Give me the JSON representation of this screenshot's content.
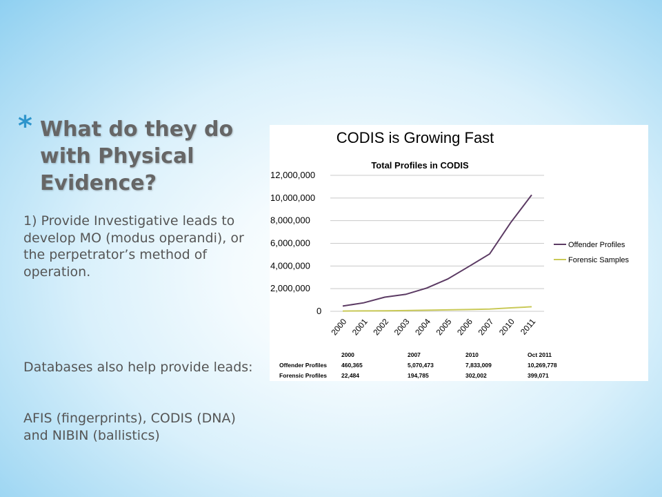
{
  "slide": {
    "bullet": "*",
    "title_lines": [
      "What do they do",
      "with Physical",
      "Evidence?"
    ],
    "paragraph1": "1) Provide Investigative leads to develop MO (modus operandi), or the perpetrator’s method of operation.",
    "paragraph2": "Databases also help provide leads:",
    "paragraph3": "AFIS (fingerprints), CODIS (DNA) and NIBIN (ballistics)"
  },
  "colors": {
    "offender": "#5b3a63",
    "forensic": "#c9c957",
    "grid": "#c8c8c8",
    "bullet": "#2e95cc",
    "title": "#666666"
  },
  "chart_data": {
    "type": "line",
    "heading": "CODIS is Growing Fast",
    "title": "Total Profiles in CODIS",
    "categories": [
      "2000",
      "2001",
      "2002",
      "2003",
      "2004",
      "2005",
      "2006",
      "2007",
      "2010",
      "2011"
    ],
    "series": [
      {
        "name": "Offender Profiles",
        "values": [
          460365,
          750000,
          1250000,
          1500000,
          2050000,
          2850000,
          3950000,
          5070473,
          7833009,
          10269778
        ]
      },
      {
        "name": "Forensic Samples",
        "values": [
          22484,
          35000,
          50000,
          70000,
          95000,
          125000,
          160000,
          194785,
          302002,
          399071
        ]
      }
    ],
    "y_ticks": [
      "0",
      "2,000,000",
      "4,000,000",
      "6,000,000",
      "8,000,000",
      "10,000,000",
      "12,000,000"
    ],
    "ylim": [
      0,
      12000000
    ],
    "legend_position": "right",
    "grid": true,
    "table": {
      "headers": [
        "",
        "2000",
        "2007",
        "2010",
        "Oct 2011"
      ],
      "rows": [
        [
          "Offender Profiles",
          "460,365",
          "5,070,473",
          "7,833,009",
          "10,269,778"
        ],
        [
          "Forensic Profiles",
          "22,484",
          "194,785",
          "302,002",
          "399,071"
        ]
      ]
    }
  }
}
